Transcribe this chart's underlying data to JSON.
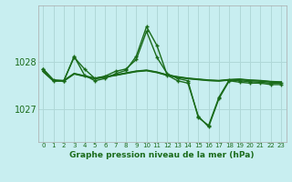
{
  "title": "Graphe pression niveau de la mer (hPa)",
  "bg_color": "#c8eef0",
  "grid_color": "#b0d8d8",
  "line_color": "#1a6b1a",
  "x_labels": [
    "0",
    "1",
    "2",
    "3",
    "4",
    "5",
    "6",
    "7",
    "8",
    "9",
    "10",
    "11",
    "12",
    "13",
    "14",
    "15",
    "16",
    "17",
    "18",
    "19",
    "20",
    "21",
    "22",
    "23"
  ],
  "yticks": [
    1027,
    1028
  ],
  "ylim": [
    1026.3,
    1029.2
  ],
  "xlim": [
    -0.5,
    23.5
  ],
  "series": [
    {
      "y": [
        1027.8,
        1027.6,
        1027.6,
        1027.75,
        1027.7,
        1027.65,
        1027.68,
        1027.72,
        1027.76,
        1027.8,
        1027.82,
        1027.78,
        1027.72,
        1027.68,
        1027.65,
        1027.63,
        1027.61,
        1027.6,
        1027.62,
        1027.63,
        1027.61,
        1027.6,
        1027.58,
        1027.57
      ],
      "marker": false,
      "lw": 1.5
    },
    {
      "y": [
        1027.8,
        1027.6,
        1027.6,
        1027.75,
        1027.7,
        1027.65,
        1027.68,
        1027.72,
        1027.76,
        1027.8,
        1027.82,
        1027.78,
        1027.72,
        1027.68,
        1027.65,
        1027.63,
        1027.61,
        1027.6,
        1027.62,
        1027.63,
        1027.61,
        1027.6,
        1027.58,
        1027.57
      ],
      "marker": false,
      "lw": 1.0
    },
    {
      "y": [
        1027.85,
        1027.6,
        1027.6,
        1028.1,
        1027.85,
        1027.65,
        1027.7,
        1027.8,
        1027.85,
        1028.05,
        1028.65,
        1028.1,
        1027.75,
        1027.65,
        1027.6,
        1026.82,
        1026.65,
        1027.25,
        1027.62,
        1027.6,
        1027.58,
        1027.57,
        1027.55,
        1027.55
      ],
      "marker": true,
      "lw": 1.0
    },
    {
      "y": [
        1027.85,
        1027.62,
        1027.6,
        1028.12,
        1027.72,
        1027.6,
        1027.65,
        1027.75,
        1027.82,
        1028.12,
        1028.75,
        1028.35,
        1027.72,
        1027.6,
        1027.55,
        1026.85,
        1026.62,
        1027.22,
        1027.6,
        1027.57,
        1027.55,
        1027.55,
        1027.52,
        1027.52
      ],
      "marker": true,
      "lw": 1.0
    }
  ]
}
